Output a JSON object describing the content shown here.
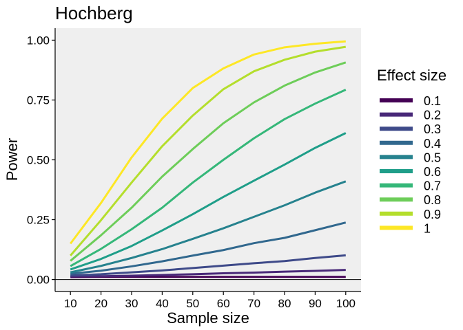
{
  "chart_data": {
    "type": "line",
    "title": "Hochberg",
    "xlabel": "Sample size",
    "ylabel": "Power",
    "x": [
      10,
      20,
      30,
      40,
      50,
      60,
      70,
      80,
      90,
      100
    ],
    "xlim": [
      5,
      105
    ],
    "ylim": [
      -0.05,
      1.05
    ],
    "y_ticks": [
      "0.00",
      "0.25",
      "0.50",
      "0.75",
      "1.00"
    ],
    "y_tick_values": [
      0,
      0.25,
      0.5,
      0.75,
      1.0
    ],
    "x_ticks": [
      "10",
      "20",
      "30",
      "40",
      "50",
      "60",
      "70",
      "80",
      "90",
      "100"
    ],
    "background": "#efefef",
    "grid": false,
    "reference_line_y": 0,
    "legend_title": "Effect size",
    "legend_position": "right",
    "series": [
      {
        "name": "0.1",
        "color": "#440154",
        "values": [
          0.01,
          0.011,
          0.011,
          0.011,
          0.011,
          0.011,
          0.011,
          0.011,
          0.011,
          0.011
        ]
      },
      {
        "name": "0.2",
        "color": "#482878",
        "values": [
          0.013,
          0.014,
          0.016,
          0.019,
          0.022,
          0.026,
          0.029,
          0.033,
          0.036,
          0.04
        ]
      },
      {
        "name": "0.3",
        "color": "#3E4A89",
        "values": [
          0.017,
          0.022,
          0.03,
          0.038,
          0.048,
          0.058,
          0.068,
          0.077,
          0.09,
          0.101
        ]
      },
      {
        "name": "0.4",
        "color": "#31688E",
        "values": [
          0.024,
          0.037,
          0.055,
          0.076,
          0.1,
          0.123,
          0.152,
          0.174,
          0.206,
          0.238
        ]
      },
      {
        "name": "0.5",
        "color": "#26828E",
        "values": [
          0.03,
          0.057,
          0.09,
          0.127,
          0.17,
          0.214,
          0.262,
          0.31,
          0.363,
          0.41
        ]
      },
      {
        "name": "0.6",
        "color": "#1F9E89",
        "values": [
          0.042,
          0.086,
          0.14,
          0.205,
          0.273,
          0.345,
          0.413,
          0.48,
          0.55,
          0.612
        ]
      },
      {
        "name": "0.7",
        "color": "#35B779",
        "values": [
          0.056,
          0.128,
          0.21,
          0.3,
          0.405,
          0.5,
          0.59,
          0.67,
          0.735,
          0.793
        ]
      },
      {
        "name": "0.8",
        "color": "#6DCD59",
        "values": [
          0.078,
          0.185,
          0.3,
          0.43,
          0.545,
          0.653,
          0.74,
          0.81,
          0.865,
          0.907
        ]
      },
      {
        "name": "0.9",
        "color": "#B4DE2C",
        "values": [
          0.1,
          0.248,
          0.405,
          0.557,
          0.685,
          0.795,
          0.87,
          0.918,
          0.952,
          0.972
        ]
      },
      {
        "name": "1",
        "color": "#FDE725",
        "values": [
          0.15,
          0.32,
          0.51,
          0.672,
          0.8,
          0.882,
          0.94,
          0.97,
          0.985,
          0.995
        ]
      }
    ]
  }
}
